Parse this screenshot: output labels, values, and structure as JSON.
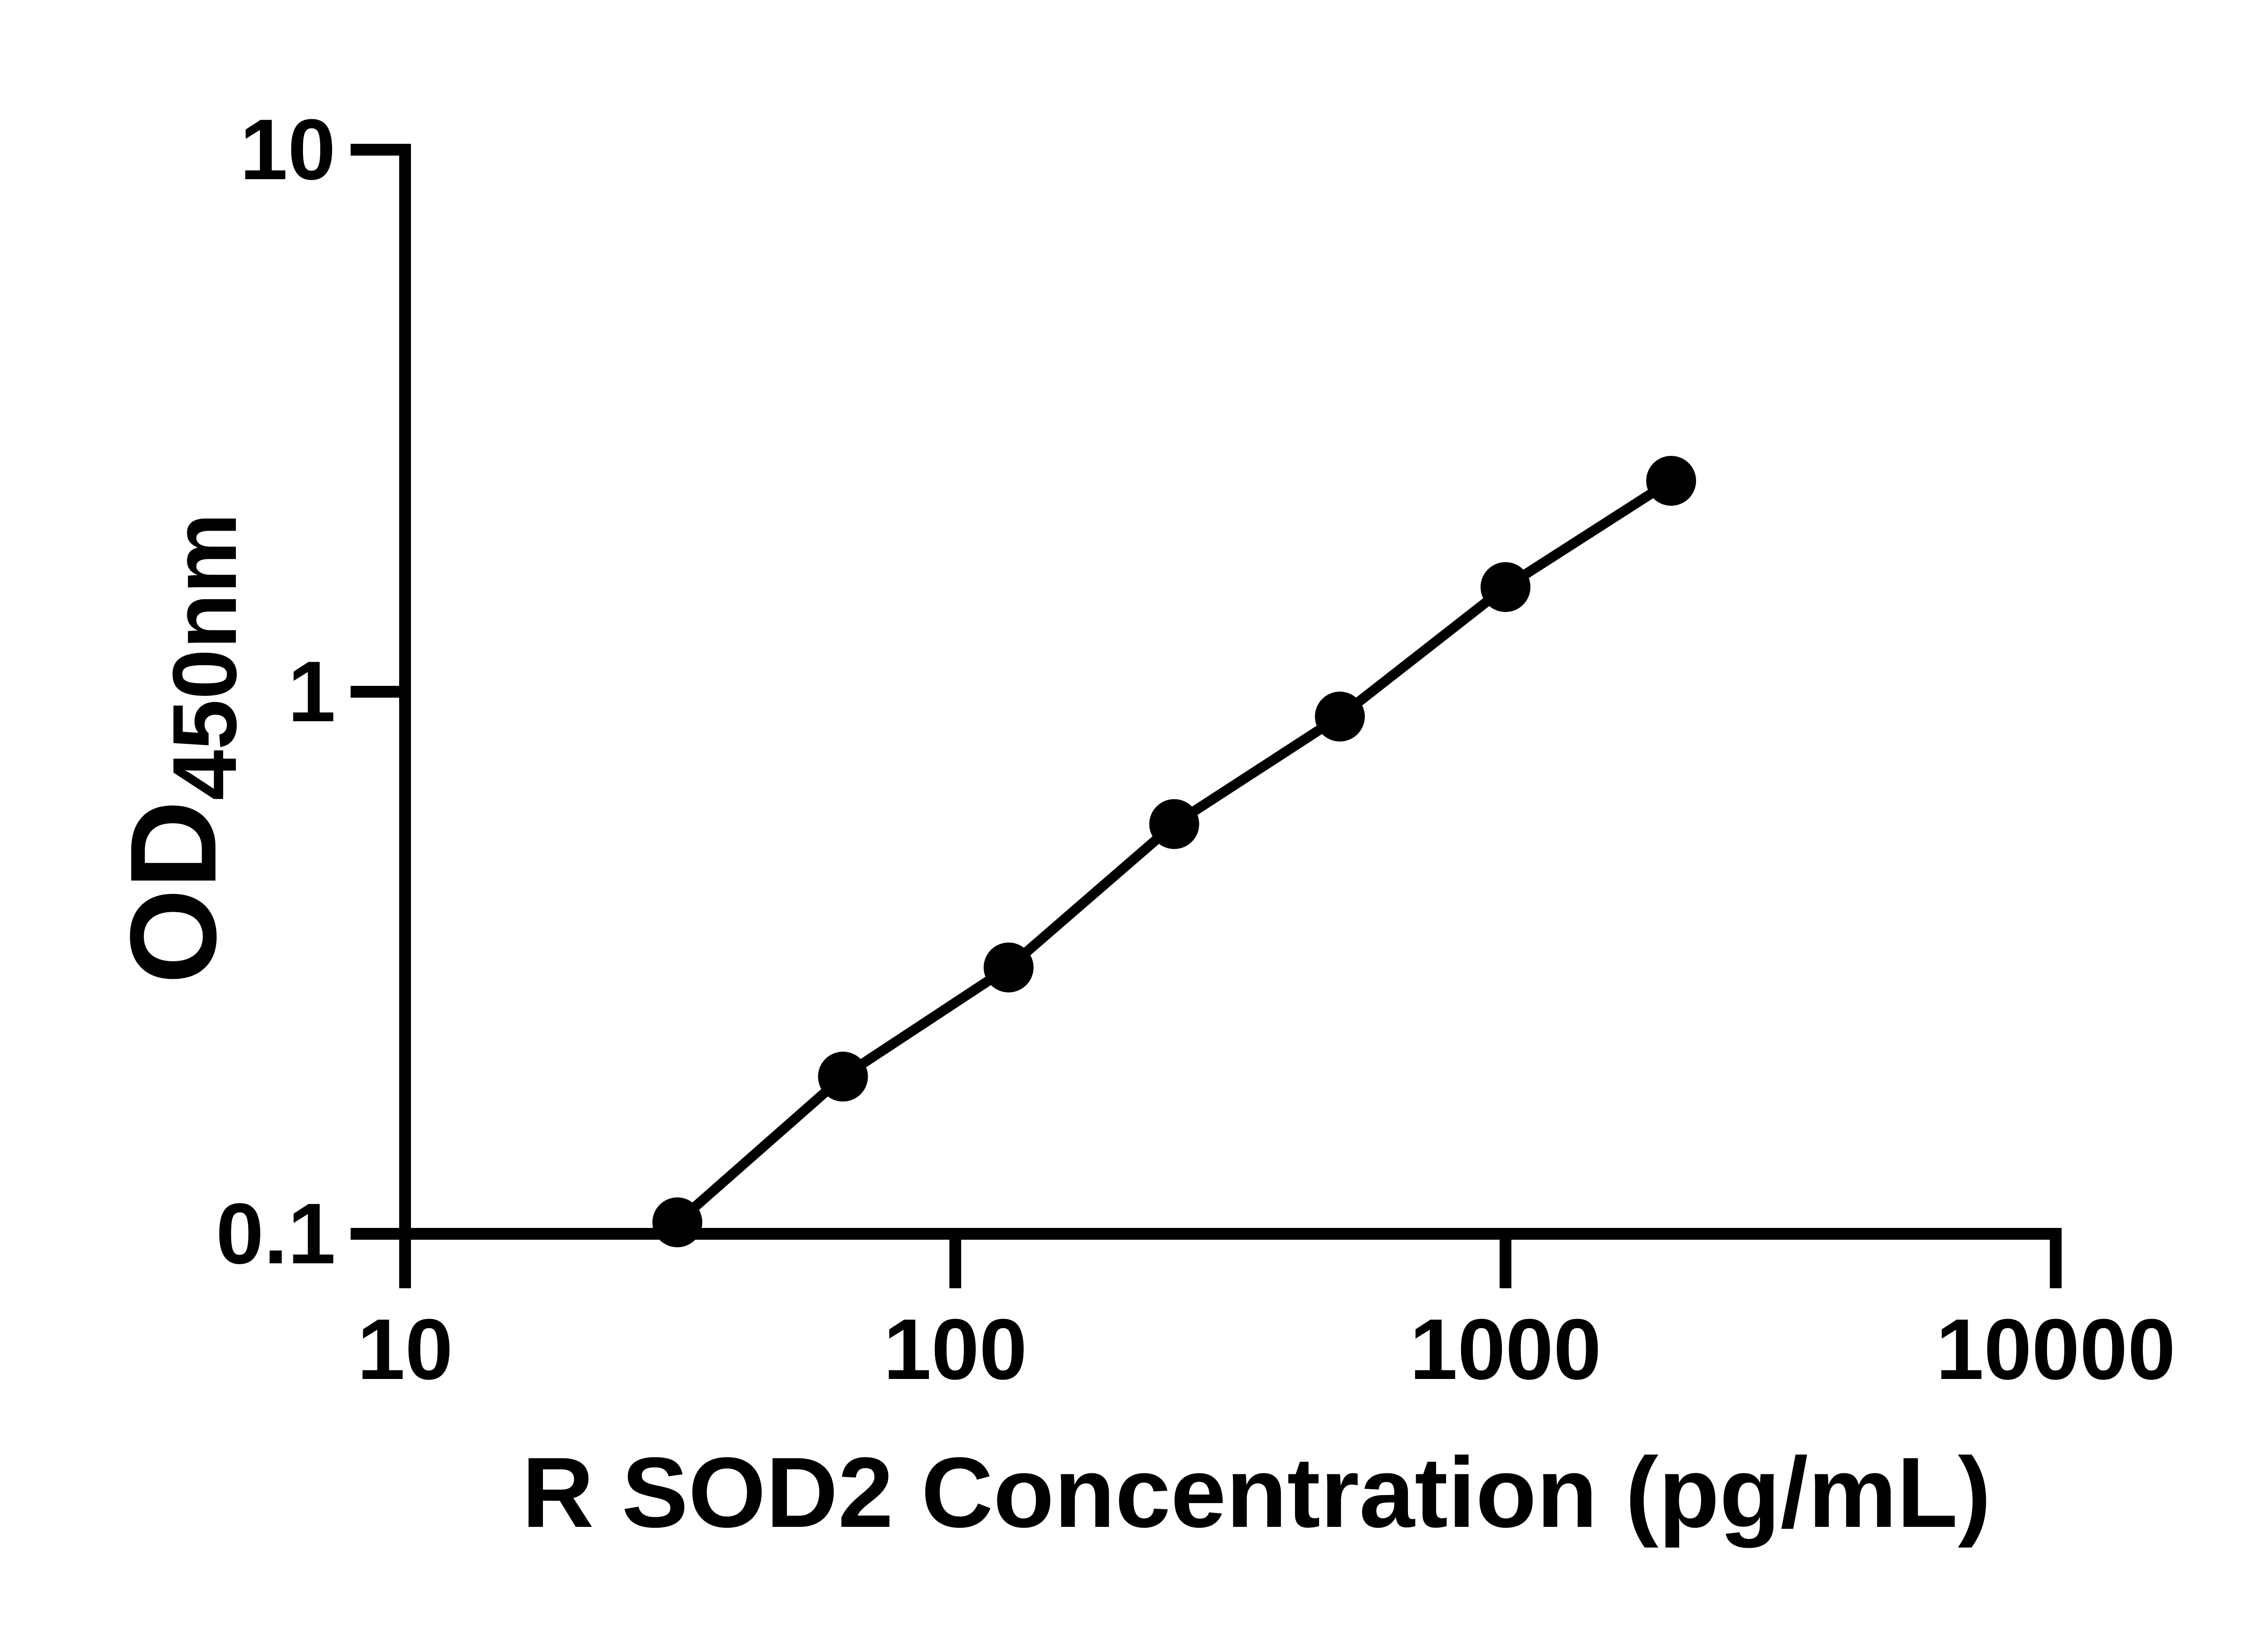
{
  "chart_data": {
    "type": "line",
    "marker": "filled-circle",
    "x": [
      31.25,
      62.5,
      125,
      250,
      500,
      1000,
      2000
    ],
    "y": [
      0.105,
      0.195,
      0.31,
      0.57,
      0.9,
      1.56,
      2.45
    ],
    "xlabel": "R SOD2 Concentration (pg/mL)",
    "ylabel": "OD450nm",
    "ylabel_parts": {
      "main": "OD",
      "sub": "450nm"
    },
    "x_scale": "log10",
    "y_scale": "log10",
    "xlim": [
      10,
      10000
    ],
    "ylim": [
      0.1,
      10
    ],
    "x_ticks": [
      {
        "value": 10,
        "label": "10"
      },
      {
        "value": 100,
        "label": "100"
      },
      {
        "value": 1000,
        "label": "1000"
      },
      {
        "value": 10000,
        "label": "10000"
      }
    ],
    "y_ticks": [
      {
        "value": 10,
        "label": "10"
      },
      {
        "value": 1,
        "label": "1"
      },
      {
        "value": 0.1,
        "label": "0.1"
      }
    ],
    "grid": false,
    "legend": "none",
    "colors": {
      "line": "#000000",
      "marker": "#000000",
      "axis": "#000000",
      "text": "#000000",
      "background": "#ffffff"
    }
  }
}
